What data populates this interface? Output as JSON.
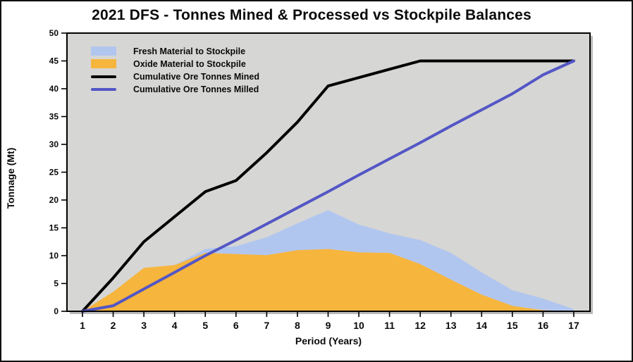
{
  "chart_data": {
    "type": "area+line",
    "title": "2021 DFS - Tonnes Mined & Processed vs Stockpile Balances",
    "xlabel": "Period (Years)",
    "ylabel": "Tonnage (Mt)",
    "x": [
      1,
      2,
      3,
      4,
      5,
      6,
      7,
      8,
      9,
      10,
      11,
      12,
      13,
      14,
      15,
      16,
      17
    ],
    "y_ticks": [
      0,
      5,
      10,
      15,
      20,
      25,
      30,
      35,
      40,
      45,
      50
    ],
    "ylim": [
      0,
      50
    ],
    "grid": false,
    "legend_position": "top-left",
    "plot_background": "#d6d6d4",
    "series": [
      {
        "name": "Fresh Material to Stockpile",
        "type": "area",
        "stacked": true,
        "color": "#b1c6ef",
        "values": [
          0,
          0,
          0,
          0,
          0.7,
          1.4,
          3.2,
          4.8,
          7.0,
          5.0,
          3.5,
          4.3,
          4.8,
          4.0,
          2.8,
          2.1,
          0.4
        ]
      },
      {
        "name": "Oxide Material to Stockpile",
        "type": "area",
        "stacked": true,
        "color": "#f6b53d",
        "values": [
          0,
          3.5,
          7.8,
          8.3,
          10.5,
          10.3,
          10.1,
          11.0,
          11.2,
          10.6,
          10.5,
          8.5,
          5.7,
          3.0,
          1.0,
          0.2,
          0
        ]
      },
      {
        "name": "Cumulative Ore Tonnes Mined",
        "type": "line",
        "color": "#000000",
        "values": [
          0,
          6,
          12.5,
          17,
          21.5,
          23.5,
          28.5,
          34,
          40.5,
          42,
          43.5,
          45,
          45,
          45,
          45,
          45,
          45
        ]
      },
      {
        "name": "Cumulative Ore Tonnes Milled",
        "type": "line",
        "color": "#5356c5",
        "values": [
          0,
          1,
          4,
          7,
          10,
          12.8,
          15.7,
          18.6,
          21.5,
          24.5,
          27.4,
          30.3,
          33.3,
          36.2,
          39.1,
          42.5,
          45
        ]
      }
    ]
  }
}
